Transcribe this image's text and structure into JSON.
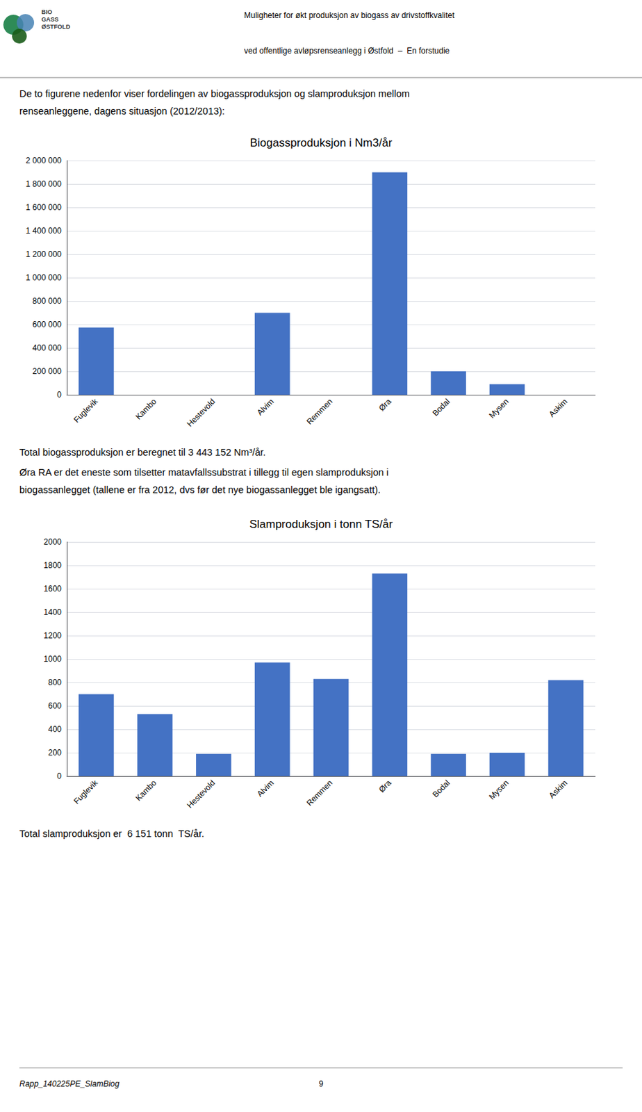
{
  "annotations": [
    "Muligheter for økt produksjon av biogass av drivstoffkvalitet",
    "ved offentlige avløpsrenseanlegg i Østfold  –  En forstudie",
    "BIO\nGASS\nØSTFOLD",
    "De to figurene nedenfor viser fordelingen av biogassproduksjon og slamproduksjon mellom",
    "renseanleggene, dagens situasjon (2012/2013):",
    "Total biogassproduksjon er beregnet til 3 443 152 Nm³/år.",
    "Øra RA er det eneste som tilsetter matavfallssubstrat i tillegg til egen slamproduksjon i",
    "biogassanlegget (tallene er fra 2012, dvs før det nye biogassanlegget ble igangsatt).",
    "Total slamproduksjon er  6 151 tonn  TS/år.",
    "Rapp_140225PE_SlamBiog",
    "9"
  ],
  "chart_data": [
    {
      "type": "bar",
      "title": "Biogassproduksjon i Nm3/år",
      "categories": [
        "Fuglevik",
        "Kambo",
        "Hestevold",
        "Alvim",
        "Remmen",
        "Øra",
        "Bodal",
        "Mysen",
        "Askim"
      ],
      "values": [
        575000,
        0,
        0,
        700000,
        0,
        1900000,
        200000,
        90000,
        0
      ],
      "color": "#4472C4",
      "ylim": [
        0,
        2000000
      ],
      "yticks": [
        0,
        {
          "value": 200000,
          "label": "200 000"
        },
        {
          "value": 400000,
          "label": "400 000"
        },
        {
          "value": 600000,
          "label": "600 000"
        },
        {
          "value": 800000,
          "label": "800 000"
        },
        {
          "value": 1000000,
          "label": "1 000 000"
        },
        {
          "value": 1200000,
          "label": "1 200 000"
        },
        {
          "value": 1400000,
          "label": "1 400 000"
        },
        {
          "value": 1600000,
          "label": "1 600 000"
        },
        {
          "value": 1800000,
          "label": "1 800 000"
        },
        {
          "value": 2000000,
          "label": "2 000 000"
        }
      ],
      "grid": true
    },
    {
      "type": "bar",
      "title": "Slamproduksjon i tonn TS/år",
      "categories": [
        "Fuglevik",
        "Kambo",
        "Hestevold",
        "Alvim",
        "Remmen",
        "Øra",
        "Bodal",
        "Mysen",
        "Askim"
      ],
      "values": [
        700,
        530,
        190,
        970,
        830,
        1730,
        190,
        200,
        820
      ],
      "color": "#4472C4",
      "ylim": [
        0,
        2000
      ],
      "yticks": [
        0,
        200,
        400,
        600,
        800,
        1000,
        1200,
        1400,
        1600,
        1800,
        2000
      ],
      "grid": true
    }
  ]
}
